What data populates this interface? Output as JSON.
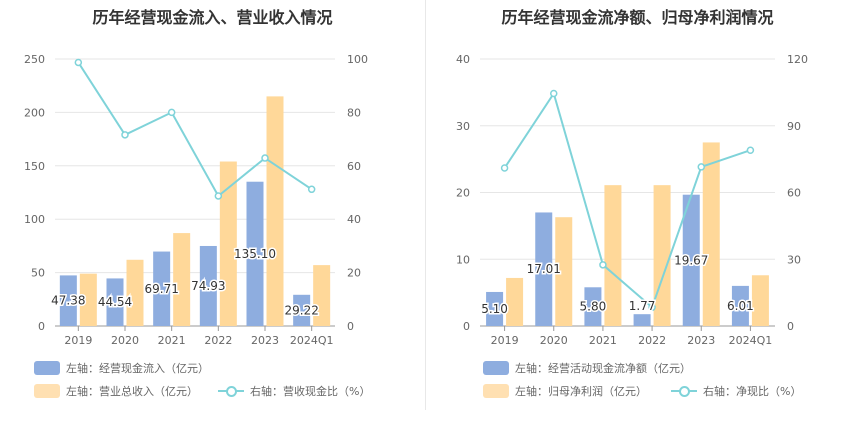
{
  "chart_data": [
    {
      "type": "bar",
      "title": "历年经营现金流入、营业收入情况",
      "categories": [
        "2019",
        "2020",
        "2021",
        "2022",
        "2023",
        "2024Q1"
      ],
      "ylim_left": [
        0,
        250
      ],
      "yticks_left": [
        0,
        50,
        100,
        150,
        200,
        250
      ],
      "ylim_right": [
        0,
        100
      ],
      "yticks_right": [
        0,
        20,
        40,
        60,
        80,
        100
      ],
      "series": [
        {
          "name": "左轴：经营现金流入（亿元）",
          "type": "bar",
          "axis": "left",
          "color": "#8eaddf",
          "values": [
            47.38,
            44.54,
            69.71,
            74.93,
            135.1,
            29.22
          ],
          "labels": [
            "47.38",
            "44.54",
            "69.71",
            "74.93",
            "135.10",
            "29.22"
          ]
        },
        {
          "name": "左轴：营业总收入（亿元）",
          "type": "bar",
          "axis": "left",
          "color": "#ffd899",
          "values": [
            49,
            62,
            87,
            154,
            215,
            57
          ]
        },
        {
          "name": "右轴：营收现金比（%）",
          "type": "line",
          "axis": "right",
          "color": "#7fd3d9",
          "values": [
            98.7,
            71.6,
            80.0,
            48.7,
            62.9,
            51.2
          ]
        }
      ]
    },
    {
      "type": "bar",
      "title": "历年经营现金流净额、归母净利润情况",
      "categories": [
        "2019",
        "2020",
        "2021",
        "2022",
        "2023",
        "2024Q1"
      ],
      "ylim_left": [
        0,
        40
      ],
      "yticks_left": [
        0,
        10,
        20,
        30,
        40
      ],
      "ylim_right": [
        0,
        120
      ],
      "yticks_right": [
        0,
        30,
        60,
        90,
        120
      ],
      "series": [
        {
          "name": "左轴：经营活动现金流净额（亿元）",
          "type": "bar",
          "axis": "left",
          "color": "#8eaddf",
          "values": [
            5.1,
            17.01,
            5.8,
            1.77,
            19.67,
            6.01
          ],
          "labels": [
            "5.10",
            "17.01",
            "5.80",
            "1.77",
            "19.67",
            "6.01"
          ]
        },
        {
          "name": "左轴：归母净利润（亿元）",
          "type": "bar",
          "axis": "left",
          "color": "#ffd899",
          "values": [
            7.2,
            16.3,
            21.1,
            21.1,
            27.5,
            7.6
          ]
        },
        {
          "name": "右轴：净现比（%）",
          "type": "line",
          "axis": "right",
          "color": "#7fd3d9",
          "values": [
            71,
            104.5,
            27.5,
            8.4,
            71.5,
            79
          ]
        }
      ]
    }
  ]
}
